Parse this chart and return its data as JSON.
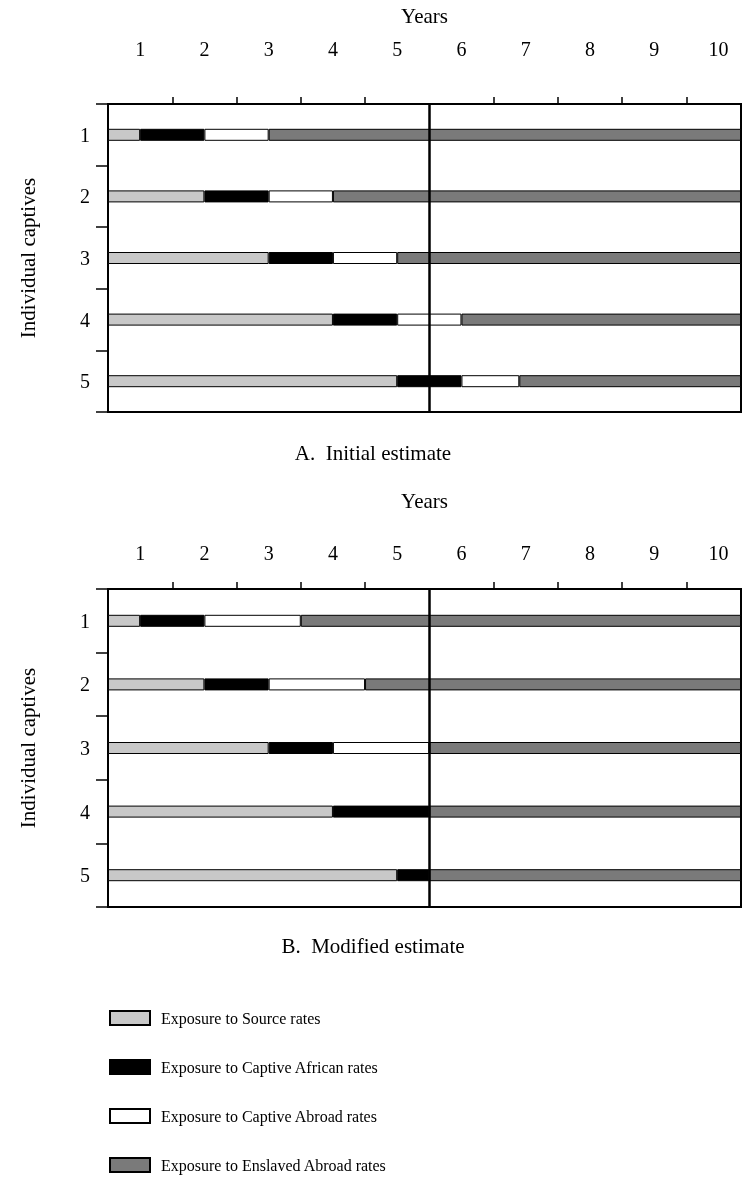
{
  "chart_data": [
    {
      "type": "bar",
      "orientation": "horizontal",
      "stacked": true,
      "title": "A.  Initial estimate",
      "xlabel": "Years",
      "ylabel": "Individual captives",
      "categories": [
        "1",
        "2",
        "3",
        "4",
        "5"
      ],
      "series": [
        {
          "color": "#c8c8c8",
          "values": [
            0.5,
            1.5,
            2.5,
            3.5,
            4.5
          ]
        },
        {
          "color": "#000000",
          "values": [
            1,
            1,
            1,
            1,
            1
          ]
        },
        {
          "color": "#ffffff",
          "values": [
            1,
            1,
            1,
            1,
            0.9
          ]
        },
        {
          "color": "#7a7a7a",
          "values": [
            7.35,
            6.35,
            5.35,
            4.35,
            3.45
          ]
        }
      ],
      "xlim": [
        0,
        9.85
      ],
      "xticks": [
        {
          "value": 0.5,
          "label": "1"
        },
        {
          "value": 1.5,
          "label": "2"
        },
        {
          "value": 2.5,
          "label": "3"
        },
        {
          "value": 3.5,
          "label": "4"
        },
        {
          "value": 4.5,
          "label": "5"
        },
        {
          "value": 5.5,
          "label": "6"
        },
        {
          "value": 6.5,
          "label": "7"
        },
        {
          "value": 7.5,
          "label": "8"
        },
        {
          "value": 8.5,
          "label": "9"
        },
        {
          "value": 9.5,
          "label": "10"
        },
        {
          "value": 1,
          "label": null
        },
        {
          "value": 2,
          "label": null
        },
        {
          "value": 3,
          "label": null
        },
        {
          "value": 4,
          "label": null
        },
        {
          "value": 6,
          "label": null
        },
        {
          "value": 7,
          "label": null
        },
        {
          "value": 8,
          "label": null
        },
        {
          "value": 9,
          "label": null
        }
      ],
      "ref_lines": [
        {
          "axis": "x",
          "value": 5,
          "color": "#000000"
        }
      ],
      "legend": false
    },
    {
      "type": "bar",
      "orientation": "horizontal",
      "stacked": true,
      "title": "B.  Modified estimate",
      "xlabel": "Years",
      "ylabel": "Individual captives",
      "categories": [
        "1",
        "2",
        "3",
        "4",
        "5"
      ],
      "series": [
        {
          "name": "Exposure to Source rates",
          "color": "#c8c8c8",
          "values": [
            0.5,
            1.5,
            2.5,
            3.5,
            4.5
          ]
        },
        {
          "name": "Exposure to Captive African rates",
          "color": "#000000",
          "values": [
            1,
            1,
            1,
            1.5,
            0.5
          ]
        },
        {
          "name": "Exposure to Captive Abroad rates",
          "color": "#ffffff",
          "values": [
            1.5,
            1.5,
            1.5,
            null,
            null
          ]
        },
        {
          "name": "Exposure to Enslaved Abroad rates",
          "color": "#7a7a7a",
          "values": [
            6.85,
            5.85,
            4.85,
            4.85,
            4.85
          ]
        }
      ],
      "xlim": [
        0,
        9.85
      ],
      "xticks": [
        {
          "value": 0.5,
          "label": "1"
        },
        {
          "value": 1.5,
          "label": "2"
        },
        {
          "value": 2.5,
          "label": "3"
        },
        {
          "value": 3.5,
          "label": "4"
        },
        {
          "value": 4.5,
          "label": "5"
        },
        {
          "value": 5.5,
          "label": "6"
        },
        {
          "value": 6.5,
          "label": "7"
        },
        {
          "value": 7.5,
          "label": "8"
        },
        {
          "value": 8.5,
          "label": "9"
        },
        {
          "value": 9.5,
          "label": "10"
        },
        {
          "value": 1,
          "label": null
        },
        {
          "value": 2,
          "label": null
        },
        {
          "value": 3,
          "label": null
        },
        {
          "value": 4,
          "label": null
        },
        {
          "value": 6,
          "label": null
        },
        {
          "value": 7,
          "label": null
        },
        {
          "value": 8,
          "label": null
        },
        {
          "value": 9,
          "label": null
        }
      ],
      "ref_lines": [
        {
          "axis": "x",
          "value": 5,
          "color": "#000000"
        }
      ],
      "legend": "bottom"
    }
  ]
}
